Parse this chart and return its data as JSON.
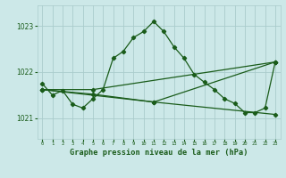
{
  "title": "Graphe pression niveau de la mer (hPa)",
  "background_color": "#cce8e8",
  "plot_background": "#cce8e8",
  "grid_color": "#aacccc",
  "line_color": "#1a5c1a",
  "xlim": [
    -0.5,
    23.5
  ],
  "ylim": [
    1020.55,
    1023.45
  ],
  "yticks": [
    1021,
    1022,
    1023
  ],
  "xticks": [
    0,
    1,
    2,
    3,
    4,
    5,
    6,
    7,
    8,
    9,
    10,
    11,
    12,
    13,
    14,
    15,
    16,
    17,
    18,
    19,
    20,
    21,
    22,
    23
  ],
  "line1_x": [
    0,
    1,
    2,
    3,
    4,
    5,
    6,
    7,
    8,
    9,
    10,
    11,
    12,
    13,
    14,
    15,
    16,
    17,
    18,
    19,
    20,
    21,
    22,
    23
  ],
  "line1_y": [
    1021.75,
    1021.5,
    1021.6,
    1021.3,
    1021.22,
    1021.42,
    1021.62,
    1022.3,
    1022.45,
    1022.75,
    1022.88,
    1023.1,
    1022.88,
    1022.55,
    1022.3,
    1021.95,
    1021.78,
    1021.62,
    1021.42,
    1021.32,
    1021.12,
    1021.12,
    1021.22,
    1022.22
  ],
  "line2_x": [
    0,
    5,
    23
  ],
  "line2_y": [
    1021.62,
    1021.62,
    1022.22
  ],
  "line3_x": [
    0,
    5,
    11,
    23
  ],
  "line3_y": [
    1021.62,
    1021.52,
    1021.35,
    1021.08
  ],
  "line4_x": [
    0,
    11,
    23
  ],
  "line4_y": [
    1021.62,
    1021.35,
    1022.22
  ]
}
